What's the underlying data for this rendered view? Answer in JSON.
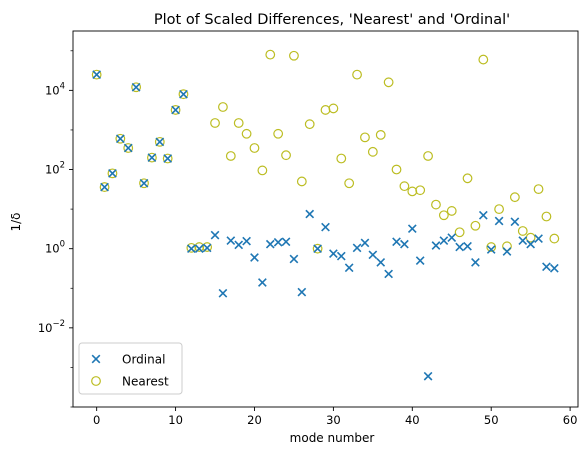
{
  "chart_data": {
    "type": "scatter",
    "title": "Plot of Scaled Differences, 'Nearest' and 'Ordinal'",
    "xlabel": "mode number",
    "ylabel": "1/δ",
    "yscale": "log",
    "xlim": [
      -3,
      61
    ],
    "ylim_exp": [
      -4,
      5.5
    ],
    "xticks": [
      0,
      10,
      20,
      30,
      40,
      50,
      60
    ],
    "yticks": [
      {
        "exp": -2,
        "base": "10",
        "sup": "−2"
      },
      {
        "exp": 0,
        "base": "10",
        "sup": "0"
      },
      {
        "exp": 2,
        "base": "10",
        "sup": "2"
      },
      {
        "exp": 4,
        "base": "10",
        "sup": "4"
      }
    ],
    "legend_position": "lower-left",
    "series": [
      {
        "name": "Ordinal",
        "marker": "x",
        "color": "#1f77b4",
        "points": [
          [
            0,
            25000
          ],
          [
            1,
            36
          ],
          [
            2,
            80
          ],
          [
            3,
            600
          ],
          [
            4,
            350
          ],
          [
            5,
            12000
          ],
          [
            6,
            45
          ],
          [
            7,
            200
          ],
          [
            8,
            500
          ],
          [
            9,
            190
          ],
          [
            10,
            3200
          ],
          [
            11,
            8000
          ],
          [
            12,
            1.0
          ],
          [
            13,
            1.0
          ],
          [
            14,
            1.05
          ],
          [
            15,
            2.2
          ],
          [
            16,
            0.075
          ],
          [
            17,
            1.6
          ],
          [
            18,
            1.25
          ],
          [
            19,
            1.55
          ],
          [
            20,
            0.6
          ],
          [
            21,
            0.14
          ],
          [
            22,
            1.3
          ],
          [
            23,
            1.45
          ],
          [
            24,
            1.5
          ],
          [
            25,
            0.55
          ],
          [
            26,
            0.08
          ],
          [
            27,
            7.5
          ],
          [
            28,
            1.0
          ],
          [
            29,
            3.5
          ],
          [
            30,
            0.75
          ],
          [
            31,
            0.65
          ],
          [
            32,
            0.33
          ],
          [
            33,
            1.05
          ],
          [
            34,
            1.4
          ],
          [
            35,
            0.7
          ],
          [
            36,
            0.45
          ],
          [
            37,
            0.23
          ],
          [
            38,
            1.5
          ],
          [
            39,
            1.3
          ],
          [
            40,
            3.2
          ],
          [
            41,
            0.5
          ],
          [
            42,
            0.0006
          ],
          [
            43,
            1.2
          ],
          [
            44,
            1.6
          ],
          [
            45,
            1.9
          ],
          [
            46,
            1.1
          ],
          [
            47,
            1.15
          ],
          [
            48,
            0.45
          ],
          [
            49,
            7.0
          ],
          [
            50,
            0.95
          ],
          [
            51,
            5.0
          ],
          [
            52,
            0.85
          ],
          [
            53,
            4.8
          ],
          [
            54,
            1.6
          ],
          [
            55,
            1.3
          ],
          [
            56,
            1.8
          ],
          [
            57,
            0.35
          ],
          [
            58,
            0.32
          ]
        ]
      },
      {
        "name": "Nearest",
        "marker": "o",
        "color": "#bcbd22",
        "points": [
          [
            0,
            25000
          ],
          [
            1,
            36
          ],
          [
            2,
            80
          ],
          [
            3,
            600
          ],
          [
            4,
            350
          ],
          [
            5,
            12000
          ],
          [
            6,
            45
          ],
          [
            7,
            200
          ],
          [
            8,
            500
          ],
          [
            9,
            190
          ],
          [
            10,
            3200
          ],
          [
            11,
            8000
          ],
          [
            12,
            1.05
          ],
          [
            13,
            1.1
          ],
          [
            14,
            1.1
          ],
          [
            15,
            1500
          ],
          [
            16,
            3800
          ],
          [
            17,
            220
          ],
          [
            18,
            1500
          ],
          [
            19,
            800
          ],
          [
            20,
            350
          ],
          [
            21,
            95
          ],
          [
            22,
            80000
          ],
          [
            23,
            800
          ],
          [
            24,
            230
          ],
          [
            25,
            75000
          ],
          [
            26,
            50
          ],
          [
            27,
            1400
          ],
          [
            28,
            1.0
          ],
          [
            29,
            3200
          ],
          [
            30,
            3500
          ],
          [
            31,
            190
          ],
          [
            32,
            45
          ],
          [
            33,
            25000
          ],
          [
            34,
            650
          ],
          [
            35,
            280
          ],
          [
            36,
            750
          ],
          [
            37,
            16000
          ],
          [
            38,
            100
          ],
          [
            39,
            38
          ],
          [
            40,
            28
          ],
          [
            41,
            30
          ],
          [
            42,
            220
          ],
          [
            43,
            13
          ],
          [
            44,
            7
          ],
          [
            45,
            9
          ],
          [
            46,
            2.6
          ],
          [
            47,
            60
          ],
          [
            48,
            3.8
          ],
          [
            49,
            60000
          ],
          [
            50,
            1.1
          ],
          [
            51,
            10
          ],
          [
            52,
            1.15
          ],
          [
            53,
            20
          ],
          [
            54,
            2.8
          ],
          [
            55,
            1.9
          ],
          [
            56,
            32
          ],
          [
            57,
            6.5
          ],
          [
            58,
            1.8
          ]
        ]
      }
    ]
  }
}
